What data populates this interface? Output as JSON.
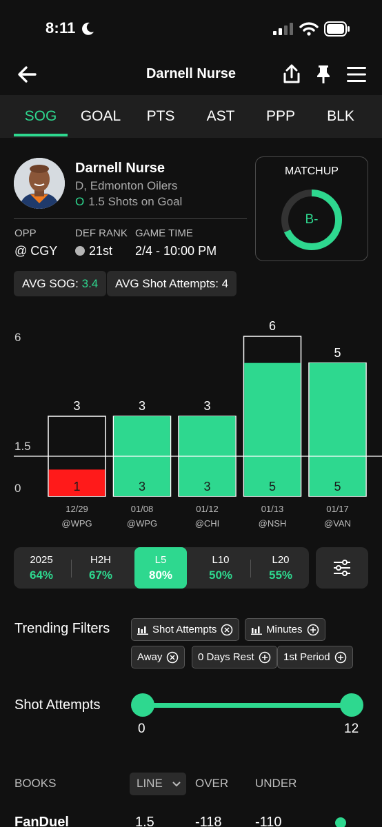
{
  "status": {
    "time": "8:11"
  },
  "header": {
    "title": "Darnell Nurse"
  },
  "tabs": [
    {
      "label": "SOG",
      "active": true
    },
    {
      "label": "GOAL"
    },
    {
      "label": "PTS"
    },
    {
      "label": "AST"
    },
    {
      "label": "PPP"
    },
    {
      "label": "BLK"
    }
  ],
  "player": {
    "name": "Darnell Nurse",
    "team": "D, Edmonton Oilers",
    "line_marker": "O",
    "line": "1.5 Shots on Goal",
    "opp_label": "OPP",
    "opp_value": "@ CGY",
    "def_rank_label": "DEF RANK",
    "def_rank_value": "21st",
    "game_time_label": "GAME TIME",
    "game_time_value": "2/4 - 10:00 PM"
  },
  "matchup": {
    "title": "MATCHUP",
    "grade": "B-",
    "fill_fraction": 0.68
  },
  "averages": {
    "avg_sog_label": "AVG SOG:",
    "avg_sog_value": "3.4",
    "avg_attempts": "AVG Shot Attempts: 4"
  },
  "chart_data": {
    "type": "bar",
    "yticks": [
      "6",
      "1.5",
      "0"
    ],
    "ylim": [
      0,
      6
    ],
    "line": 1.5,
    "categories": [
      "12/29",
      "01/08",
      "01/12",
      "01/13",
      "01/17"
    ],
    "opponents": [
      "@WPG",
      "@WPG",
      "@CHI",
      "@NSH",
      "@VAN"
    ],
    "series": [
      {
        "values": [
          3,
          3,
          3,
          6,
          5
        ]
      },
      {
        "values": [
          1,
          3,
          3,
          5,
          5
        ]
      }
    ],
    "colors": {
      "over": "#2ed88f",
      "under": "#ff1a1a",
      "outline": "#ffffff"
    }
  },
  "splits": [
    {
      "label": "2025",
      "value": "64%"
    },
    {
      "label": "H2H",
      "value": "67%"
    },
    {
      "label": "L5",
      "value": "80%",
      "active": true
    },
    {
      "label": "L10",
      "value": "50%"
    },
    {
      "label": "L20",
      "value": "55%"
    }
  ],
  "trending": {
    "label": "Trending Filters",
    "chips": [
      "Shot Attempts",
      "Minutes",
      "Away",
      "0 Days Rest",
      "1st Period"
    ]
  },
  "slider": {
    "label": "Shot Attempts",
    "min": "0",
    "max": "12"
  },
  "books": {
    "headers": {
      "books": "BOOKS",
      "line": "LINE",
      "over": "OVER",
      "under": "UNDER"
    },
    "rows": [
      {
        "name": "FanDuel",
        "line": "1.5",
        "over": "-118",
        "under": "-110"
      }
    ]
  },
  "colors": {
    "accent": "#2ed88f",
    "under": "#ff1a1a",
    "bg": "#111111"
  }
}
